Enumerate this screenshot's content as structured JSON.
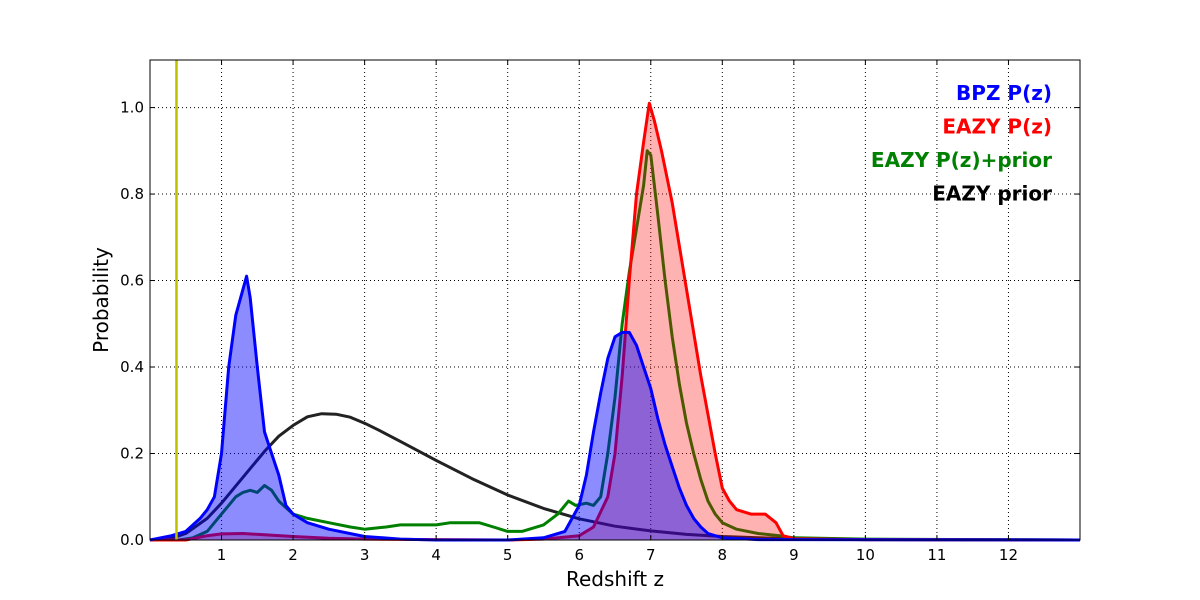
{
  "chart_data": {
    "type": "area",
    "title": "",
    "xlabel": "Redshift z",
    "ylabel": "Probability",
    "xlim": [
      0,
      13
    ],
    "ylim": [
      0,
      1.11
    ],
    "grid": true,
    "legend_position": "top-right",
    "x_ticks": [
      1,
      2,
      3,
      4,
      5,
      6,
      7,
      8,
      9,
      10,
      11,
      12
    ],
    "y_ticks": [
      0.0,
      0.2,
      0.4,
      0.6,
      0.8,
      1.0
    ],
    "y_tick_labels": [
      "0.0",
      "0.2",
      "0.4",
      "0.6",
      "0.8",
      "1.0"
    ],
    "vline": {
      "x": 0.37,
      "color": "#bfbf00"
    },
    "series": [
      {
        "name": "EAZY prior",
        "color": "#222222",
        "fill": null,
        "points": [
          [
            0,
            0
          ],
          [
            0.3,
            0.004
          ],
          [
            0.5,
            0.015
          ],
          [
            0.8,
            0.05
          ],
          [
            1.0,
            0.085
          ],
          [
            1.2,
            0.125
          ],
          [
            1.4,
            0.165
          ],
          [
            1.6,
            0.205
          ],
          [
            1.8,
            0.24
          ],
          [
            2.0,
            0.265
          ],
          [
            2.2,
            0.285
          ],
          [
            2.4,
            0.292
          ],
          [
            2.6,
            0.291
          ],
          [
            2.8,
            0.284
          ],
          [
            3.0,
            0.27
          ],
          [
            3.2,
            0.254
          ],
          [
            3.5,
            0.228
          ],
          [
            4.0,
            0.184
          ],
          [
            4.5,
            0.142
          ],
          [
            5.0,
            0.104
          ],
          [
            5.5,
            0.073
          ],
          [
            6.0,
            0.049
          ],
          [
            6.5,
            0.032
          ],
          [
            7.0,
            0.021
          ],
          [
            7.5,
            0.013
          ],
          [
            8.0,
            0.008
          ],
          [
            8.5,
            0.005
          ],
          [
            9.0,
            0.003
          ],
          [
            10.0,
            0.001
          ],
          [
            11.0,
            0.0005
          ],
          [
            13.0,
            0
          ]
        ]
      },
      {
        "name": "EAZY P(z)+prior",
        "color": "#008000",
        "fill": null,
        "points": [
          [
            0,
            0
          ],
          [
            0.4,
            0
          ],
          [
            0.6,
            0.005
          ],
          [
            0.8,
            0.02
          ],
          [
            0.9,
            0.04
          ],
          [
            1.0,
            0.06
          ],
          [
            1.1,
            0.08
          ],
          [
            1.2,
            0.1
          ],
          [
            1.3,
            0.11
          ],
          [
            1.4,
            0.115
          ],
          [
            1.5,
            0.11
          ],
          [
            1.6,
            0.126
          ],
          [
            1.7,
            0.115
          ],
          [
            1.8,
            0.09
          ],
          [
            1.9,
            0.075
          ],
          [
            2.0,
            0.06
          ],
          [
            2.2,
            0.05
          ],
          [
            2.5,
            0.04
          ],
          [
            2.8,
            0.03
          ],
          [
            3.0,
            0.025
          ],
          [
            3.3,
            0.03
          ],
          [
            3.5,
            0.035
          ],
          [
            4.0,
            0.035
          ],
          [
            4.2,
            0.04
          ],
          [
            4.6,
            0.04
          ],
          [
            4.8,
            0.03
          ],
          [
            5.0,
            0.02
          ],
          [
            5.2,
            0.02
          ],
          [
            5.5,
            0.035
          ],
          [
            5.7,
            0.06
          ],
          [
            5.85,
            0.09
          ],
          [
            5.95,
            0.08
          ],
          [
            6.1,
            0.085
          ],
          [
            6.2,
            0.08
          ],
          [
            6.3,
            0.1
          ],
          [
            6.4,
            0.2
          ],
          [
            6.5,
            0.33
          ],
          [
            6.6,
            0.5
          ],
          [
            6.7,
            0.62
          ],
          [
            6.8,
            0.72
          ],
          [
            6.9,
            0.82
          ],
          [
            6.95,
            0.9
          ],
          [
            7.0,
            0.89
          ],
          [
            7.1,
            0.75
          ],
          [
            7.2,
            0.6
          ],
          [
            7.3,
            0.47
          ],
          [
            7.4,
            0.36
          ],
          [
            7.5,
            0.27
          ],
          [
            7.6,
            0.2
          ],
          [
            7.7,
            0.14
          ],
          [
            7.8,
            0.09
          ],
          [
            7.9,
            0.06
          ],
          [
            8.0,
            0.04
          ],
          [
            8.2,
            0.025
          ],
          [
            8.5,
            0.015
          ],
          [
            8.8,
            0.01
          ],
          [
            9.0,
            0.005
          ],
          [
            10.0,
            0.002
          ],
          [
            13.0,
            0
          ]
        ]
      },
      {
        "name": "EAZY P(z)",
        "color": "#ff0000",
        "fill": "rgba(255,0,0,0.3)",
        "points": [
          [
            0,
            0
          ],
          [
            0.5,
            0
          ],
          [
            0.8,
            0.01
          ],
          [
            1.0,
            0.014
          ],
          [
            1.3,
            0.015
          ],
          [
            1.6,
            0.012
          ],
          [
            2.0,
            0.008
          ],
          [
            2.5,
            0.004
          ],
          [
            3.0,
            0.002
          ],
          [
            4.0,
            0.001
          ],
          [
            5.0,
            0
          ],
          [
            5.5,
            0.002
          ],
          [
            6.0,
            0.01
          ],
          [
            6.2,
            0.03
          ],
          [
            6.4,
            0.1
          ],
          [
            6.5,
            0.2
          ],
          [
            6.6,
            0.38
          ],
          [
            6.7,
            0.6
          ],
          [
            6.8,
            0.8
          ],
          [
            6.9,
            0.92
          ],
          [
            6.98,
            1.01
          ],
          [
            7.05,
            0.97
          ],
          [
            7.15,
            0.9
          ],
          [
            7.3,
            0.78
          ],
          [
            7.5,
            0.58
          ],
          [
            7.7,
            0.38
          ],
          [
            7.9,
            0.2
          ],
          [
            8.0,
            0.12
          ],
          [
            8.1,
            0.09
          ],
          [
            8.2,
            0.07
          ],
          [
            8.4,
            0.06
          ],
          [
            8.6,
            0.06
          ],
          [
            8.75,
            0.04
          ],
          [
            8.85,
            0.01
          ],
          [
            9.0,
            0.003
          ],
          [
            10.0,
            0.001
          ],
          [
            13.0,
            0
          ]
        ]
      },
      {
        "name": "BPZ P(z)",
        "color": "#0000ff",
        "fill": "rgba(0,0,255,0.45)",
        "points": [
          [
            0,
            0
          ],
          [
            0.3,
            0.01
          ],
          [
            0.5,
            0.02
          ],
          [
            0.7,
            0.05
          ],
          [
            0.8,
            0.07
          ],
          [
            0.9,
            0.1
          ],
          [
            1.0,
            0.2
          ],
          [
            1.1,
            0.4
          ],
          [
            1.2,
            0.52
          ],
          [
            1.3,
            0.58
          ],
          [
            1.35,
            0.61
          ],
          [
            1.4,
            0.56
          ],
          [
            1.5,
            0.4
          ],
          [
            1.6,
            0.25
          ],
          [
            1.7,
            0.2
          ],
          [
            1.8,
            0.15
          ],
          [
            1.9,
            0.08
          ],
          [
            2.0,
            0.06
          ],
          [
            2.2,
            0.04
          ],
          [
            2.5,
            0.025
          ],
          [
            3.0,
            0.008
          ],
          [
            3.5,
            0.002
          ],
          [
            4.0,
            0
          ],
          [
            5.0,
            0
          ],
          [
            5.5,
            0.005
          ],
          [
            5.8,
            0.02
          ],
          [
            6.0,
            0.08
          ],
          [
            6.1,
            0.15
          ],
          [
            6.2,
            0.25
          ],
          [
            6.3,
            0.34
          ],
          [
            6.4,
            0.42
          ],
          [
            6.5,
            0.47
          ],
          [
            6.6,
            0.48
          ],
          [
            6.7,
            0.48
          ],
          [
            6.8,
            0.45
          ],
          [
            6.9,
            0.4
          ],
          [
            7.0,
            0.35
          ],
          [
            7.1,
            0.28
          ],
          [
            7.2,
            0.22
          ],
          [
            7.3,
            0.17
          ],
          [
            7.4,
            0.12
          ],
          [
            7.5,
            0.08
          ],
          [
            7.6,
            0.05
          ],
          [
            7.7,
            0.03
          ],
          [
            7.8,
            0.015
          ],
          [
            8.0,
            0.005
          ],
          [
            8.5,
            0.001
          ],
          [
            9.0,
            0.001
          ],
          [
            13.0,
            0
          ]
        ]
      }
    ],
    "legend": [
      {
        "label": "BPZ P(z)",
        "color": "#0000ff"
      },
      {
        "label": "EAZY P(z)",
        "color": "#ff0000"
      },
      {
        "label": "EAZY P(z)+prior",
        "color": "#008000"
      },
      {
        "label": "EAZY prior",
        "color": "#000000"
      }
    ]
  }
}
